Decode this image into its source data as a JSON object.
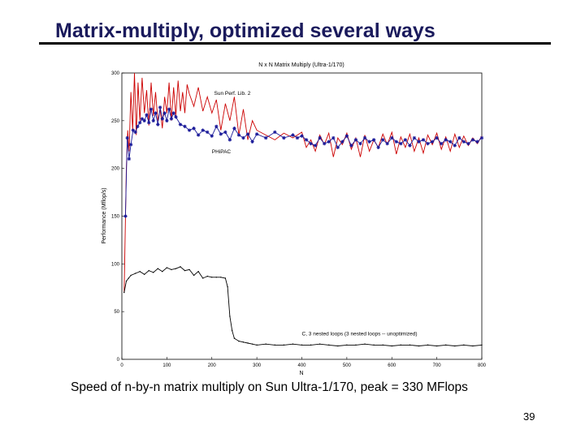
{
  "slide": {
    "title": "Matrix-multiply, optimized several ways",
    "caption": "Speed of n-by-n matrix multiply on Sun Ultra-1/170, peak = 330 MFlops",
    "page_number": "39"
  },
  "chart_data": {
    "type": "line",
    "title": "N x N Matrix Multiply (Ultra-1/170)",
    "xlabel": "N",
    "ylabel": "Performance (Mflop/s)",
    "xlim": [
      0,
      800
    ],
    "ylim": [
      0,
      300
    ],
    "x_ticks": [
      0,
      100,
      200,
      300,
      400,
      500,
      600,
      700,
      800
    ],
    "y_ticks": [
      0,
      50,
      100,
      150,
      200,
      250,
      300
    ],
    "grid": false,
    "annotations": [
      {
        "text": "Sun Perf. Lib. 2",
        "x": 205,
        "y": 277
      },
      {
        "text": "PHiPAC",
        "x": 200,
        "y": 216
      },
      {
        "text": "C, 3 nested loops (3 nested loops -- unoptimized)",
        "x": 400,
        "y": 25
      }
    ],
    "series": [
      {
        "name": "Sun Perf. Lib. 2",
        "color": "#cc0000",
        "marker": "none",
        "x": [
          5,
          10,
          13,
          16,
          20,
          24,
          28,
          32,
          36,
          40,
          45,
          50,
          55,
          60,
          65,
          70,
          75,
          80,
          85,
          90,
          95,
          100,
          105,
          110,
          115,
          120,
          125,
          130,
          135,
          140,
          145,
          150,
          160,
          170,
          180,
          190,
          200,
          210,
          220,
          230,
          240,
          250,
          260,
          270,
          280,
          290,
          300,
          320,
          340,
          360,
          380,
          400,
          410,
          420,
          430,
          440,
          450,
          460,
          470,
          480,
          490,
          500,
          510,
          520,
          530,
          540,
          550,
          560,
          570,
          580,
          590,
          600,
          610,
          620,
          630,
          640,
          650,
          660,
          670,
          680,
          690,
          700,
          710,
          720,
          730,
          740,
          750,
          760,
          770,
          780,
          790,
          800
        ],
        "y": [
          70,
          200,
          240,
          218,
          280,
          240,
          300,
          235,
          290,
          250,
          295,
          258,
          282,
          245,
          290,
          255,
          280,
          250,
          262,
          242,
          275,
          258,
          290,
          250,
          285,
          255,
          292,
          260,
          280,
          258,
          288,
          278,
          265,
          285,
          260,
          275,
          258,
          272,
          240,
          268,
          250,
          275,
          235,
          262,
          230,
          250,
          240,
          235,
          230,
          237,
          232,
          238,
          222,
          230,
          218,
          235,
          225,
          237,
          212,
          232,
          225,
          237,
          220,
          232,
          212,
          235,
          218,
          230,
          222,
          236,
          225,
          238,
          215,
          233,
          222,
          236,
          218,
          232,
          216,
          235,
          225,
          237,
          220,
          233,
          218,
          236,
          222,
          234,
          224,
          232,
          226,
          234
        ]
      },
      {
        "name": "PHiPAC",
        "color": "#1a1a99",
        "marker": "star",
        "x": [
          8,
          12,
          16,
          20,
          25,
          30,
          35,
          40,
          45,
          50,
          55,
          60,
          65,
          70,
          75,
          80,
          85,
          90,
          95,
          100,
          105,
          110,
          115,
          120,
          130,
          140,
          150,
          160,
          170,
          180,
          190,
          200,
          210,
          220,
          230,
          240,
          250,
          260,
          270,
          280,
          290,
          300,
          320,
          340,
          360,
          380,
          390,
          400,
          410,
          420,
          430,
          440,
          450,
          460,
          470,
          480,
          490,
          500,
          510,
          520,
          530,
          540,
          550,
          560,
          570,
          580,
          590,
          600,
          610,
          620,
          630,
          640,
          650,
          660,
          670,
          680,
          690,
          700,
          710,
          720,
          730,
          740,
          750,
          760,
          770,
          780,
          790,
          800
        ],
        "y": [
          150,
          232,
          210,
          225,
          240,
          238,
          244,
          248,
          252,
          250,
          256,
          248,
          262,
          250,
          258,
          246,
          264,
          252,
          258,
          250,
          262,
          252,
          258,
          254,
          246,
          244,
          240,
          242,
          235,
          240,
          238,
          234,
          244,
          236,
          238,
          230,
          242,
          235,
          232,
          236,
          228,
          236,
          232,
          238,
          232,
          235,
          232,
          234,
          230,
          226,
          224,
          232,
          226,
          228,
          232,
          222,
          228,
          234,
          224,
          230,
          226,
          232,
          228,
          230,
          222,
          230,
          226,
          232,
          228,
          226,
          230,
          224,
          232,
          228,
          230,
          226,
          228,
          232,
          226,
          230,
          228,
          224,
          232,
          228,
          226,
          230,
          228,
          232
        ]
      },
      {
        "name": "C, 3 nested loops",
        "color": "#000000",
        "marker": "dot",
        "x": [
          5,
          10,
          15,
          20,
          30,
          40,
          50,
          60,
          70,
          80,
          90,
          100,
          110,
          120,
          130,
          140,
          150,
          160,
          170,
          180,
          190,
          200,
          210,
          220,
          230,
          235,
          240,
          245,
          250,
          260,
          270,
          280,
          290,
          300,
          320,
          340,
          360,
          380,
          400,
          420,
          440,
          460,
          480,
          500,
          520,
          540,
          560,
          580,
          600,
          620,
          640,
          660,
          680,
          700,
          720,
          740,
          760,
          780,
          800
        ],
        "y": [
          70,
          82,
          85,
          88,
          90,
          92,
          89,
          93,
          91,
          95,
          92,
          96,
          94,
          95,
          97,
          93,
          94,
          88,
          92,
          85,
          87,
          86,
          86,
          86,
          85,
          76,
          45,
          30,
          22,
          19,
          18,
          17,
          16,
          15,
          16,
          15,
          15,
          16,
          15,
          15,
          16,
          15,
          14,
          15,
          15,
          16,
          15,
          15,
          14,
          15,
          15,
          14,
          15,
          14,
          15,
          14,
          15,
          14,
          15
        ]
      }
    ]
  }
}
